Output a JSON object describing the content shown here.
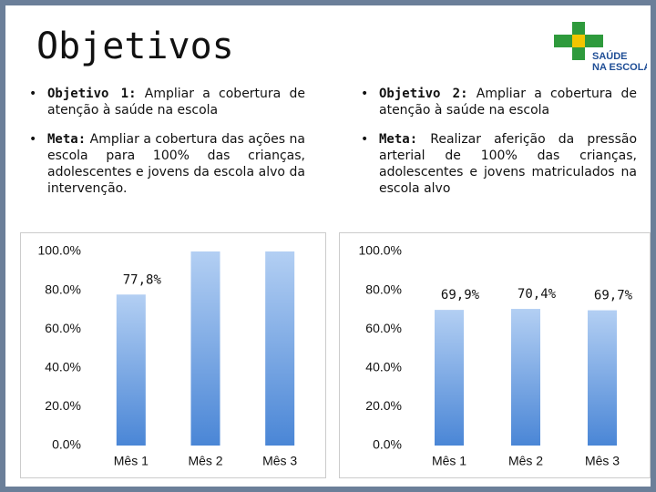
{
  "slide_title": "Objetivos",
  "logo": {
    "line1": "SAÚDE",
    "line2": "NA ESCOLA"
  },
  "columns": [
    {
      "items": [
        {
          "label": "Objetivo 1:",
          "text": "Ampliar a cobertura de atenção à saúde na escola"
        },
        {
          "label": "Meta:",
          "text": "Ampliar a cobertura das ações na escola para 100% das crianças, adolescentes e jovens da escola alvo da intervenção."
        }
      ]
    },
    {
      "items": [
        {
          "label": "Objetivo 2:",
          "text": "Ampliar a cobertura de atenção à saúde na escola"
        },
        {
          "label": "Meta:",
          "text": "Realizar aferição da pressão arterial de 100% das crianças, adolescentes e jovens matriculados na escola alvo"
        }
      ]
    }
  ],
  "chart_data": [
    {
      "type": "bar",
      "categories": [
        "Mês 1",
        "Mês 2",
        "Mês 3"
      ],
      "values": [
        77.8,
        100,
        100
      ],
      "value_labels": [
        "77,8%",
        null,
        null
      ],
      "color": "#4a86d6",
      "ylim": [
        0,
        100
      ],
      "yticks": [
        {
          "value": 0,
          "label": "0.0%"
        },
        {
          "value": 20,
          "label": "20.0%"
        },
        {
          "value": 40,
          "label": "40.0%"
        },
        {
          "value": 60,
          "label": "60.0%"
        },
        {
          "value": 80,
          "label": "80.0%"
        },
        {
          "value": 100,
          "label": "100.0%"
        }
      ],
      "grid": false
    },
    {
      "type": "bar",
      "categories": [
        "Mês 1",
        "Mês 2",
        "Mês 3"
      ],
      "values": [
        69.9,
        70.4,
        69.7
      ],
      "value_labels": [
        "69,9%",
        "70,4%",
        "69,7%"
      ],
      "color": "#4a86d6",
      "ylim": [
        0,
        100
      ],
      "yticks": [
        {
          "value": 0,
          "label": "0.0%"
        },
        {
          "value": 20,
          "label": "20.0%"
        },
        {
          "value": 40,
          "label": "40.0%"
        },
        {
          "value": 60,
          "label": "60.0%"
        },
        {
          "value": 80,
          "label": "80.0%"
        },
        {
          "value": 100,
          "label": "100.0%"
        }
      ],
      "grid": false
    }
  ]
}
